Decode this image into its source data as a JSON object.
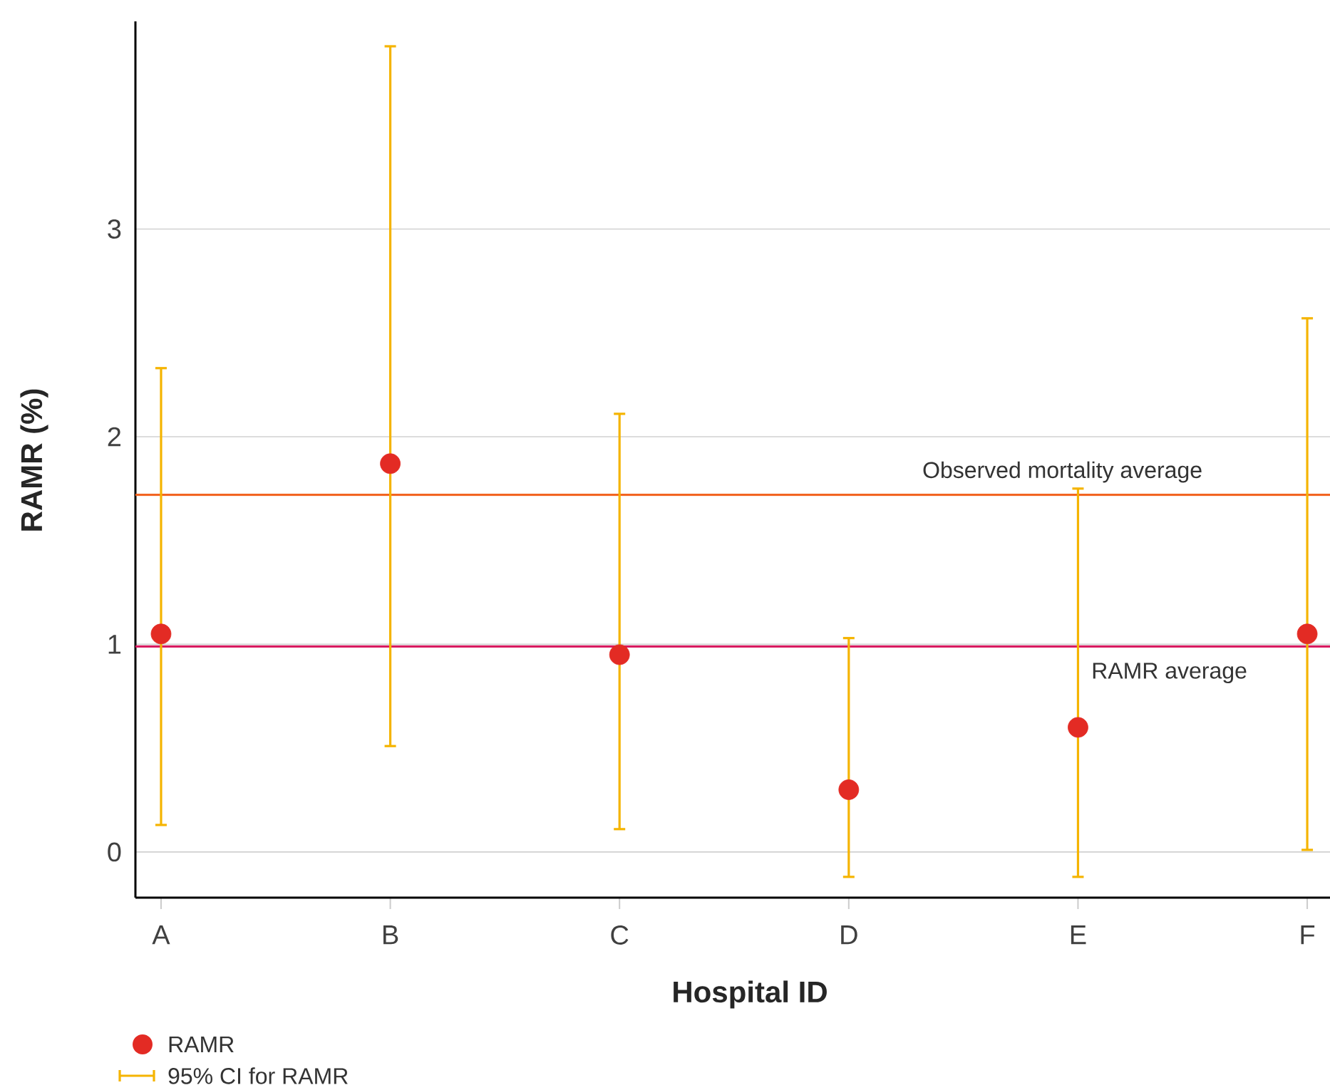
{
  "chart_data": {
    "type": "scatter",
    "xlabel": "Hospital ID",
    "ylabel": "RAMR (%)",
    "categories": [
      "A",
      "B",
      "C",
      "D",
      "E",
      "F"
    ],
    "series": [
      {
        "name": "RAMR",
        "color": "#e32b24",
        "values": [
          1.05,
          1.87,
          0.95,
          0.3,
          0.6,
          1.05
        ],
        "errors": [
          [
            0.13,
            2.33
          ],
          [
            0.51,
            3.88
          ],
          [
            0.11,
            2.11
          ],
          [
            -0.12,
            1.03
          ],
          [
            -0.12,
            1.75
          ],
          [
            0.01,
            2.57
          ]
        ]
      }
    ],
    "ylim": [
      -0.22,
      4.0
    ],
    "yticks": [
      0,
      1,
      2,
      3
    ],
    "grid": "y",
    "marker": "circle",
    "legend": "bottom left",
    "ref_lines": [
      {
        "axis": "y",
        "value": 1.72,
        "label": "Observed mortality average",
        "color": "#f26522"
      },
      {
        "axis": "y",
        "value": 0.99,
        "label": "RAMR average",
        "color": "#d81b60"
      }
    ],
    "annotations": [
      "95% CI for RAMR"
    ]
  }
}
